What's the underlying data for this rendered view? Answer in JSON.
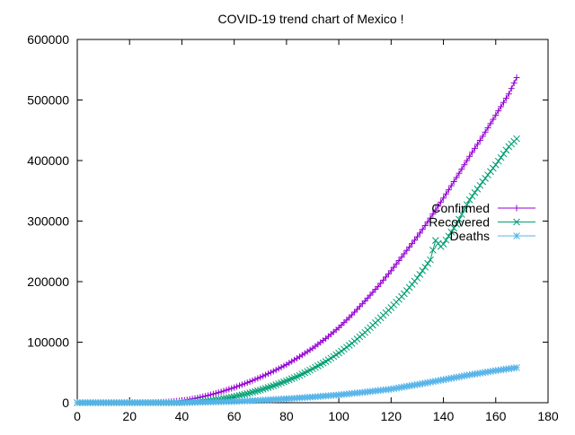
{
  "chart_data": {
    "type": "line",
    "title": "COVID-19 trend chart of Mexico !",
    "xlabel": "",
    "ylabel": "",
    "xlim": [
      0,
      180
    ],
    "ylim": [
      0,
      600000
    ],
    "x_ticks": [
      0,
      20,
      40,
      60,
      80,
      100,
      120,
      140,
      160,
      180
    ],
    "y_ticks": [
      0,
      100000,
      200000,
      300000,
      400000,
      500000,
      600000
    ],
    "x_tick_labels": [
      "0",
      "20",
      "40",
      "60",
      "80",
      "100",
      "120",
      "140",
      "160",
      "180"
    ],
    "y_tick_labels": [
      "0",
      "100000",
      "200000",
      "300000",
      "400000",
      "500000",
      "600000"
    ],
    "grid": false,
    "legend_placement": "right",
    "series": [
      {
        "name": "Confirmed",
        "color": "#9400d3",
        "marker": "plus",
        "points": [
          [
            0,
            0
          ],
          [
            10,
            0
          ],
          [
            20,
            0
          ],
          [
            30,
            500
          ],
          [
            35,
            1500
          ],
          [
            40,
            3500
          ],
          [
            45,
            7000
          ],
          [
            50,
            12000
          ],
          [
            55,
            18000
          ],
          [
            60,
            25000
          ],
          [
            65,
            33000
          ],
          [
            70,
            42000
          ],
          [
            75,
            52000
          ],
          [
            80,
            63000
          ],
          [
            85,
            76000
          ],
          [
            90,
            90000
          ],
          [
            95,
            106000
          ],
          [
            100,
            124000
          ],
          [
            105,
            145000
          ],
          [
            110,
            168000
          ],
          [
            115,
            192000
          ],
          [
            120,
            218000
          ],
          [
            125,
            246000
          ],
          [
            130,
            274000
          ],
          [
            135,
            305000
          ],
          [
            140,
            338000
          ],
          [
            145,
            372000
          ],
          [
            150,
            407000
          ],
          [
            155,
            440000
          ],
          [
            160,
            475000
          ],
          [
            165,
            510000
          ],
          [
            168,
            537000
          ]
        ]
      },
      {
        "name": "Recovered",
        "color": "#009e73",
        "marker": "cross",
        "points": [
          [
            0,
            0
          ],
          [
            20,
            0
          ],
          [
            40,
            0
          ],
          [
            45,
            1000
          ],
          [
            50,
            3000
          ],
          [
            55,
            6000
          ],
          [
            60,
            10000
          ],
          [
            65,
            15000
          ],
          [
            70,
            21000
          ],
          [
            75,
            28000
          ],
          [
            80,
            36000
          ],
          [
            85,
            45000
          ],
          [
            90,
            56000
          ],
          [
            95,
            68000
          ],
          [
            100,
            82000
          ],
          [
            105,
            98000
          ],
          [
            110,
            116000
          ],
          [
            115,
            136000
          ],
          [
            120,
            157000
          ],
          [
            125,
            180000
          ],
          [
            130,
            206000
          ],
          [
            135,
            236000
          ],
          [
            137,
            268000
          ],
          [
            139,
            258000
          ],
          [
            140,
            262000
          ],
          [
            145,
            295000
          ],
          [
            150,
            335000
          ],
          [
            155,
            365000
          ],
          [
            160,
            393000
          ],
          [
            165,
            423000
          ],
          [
            168,
            436000
          ]
        ]
      },
      {
        "name": "Deaths",
        "color": "#56b4e9",
        "marker": "star",
        "points": [
          [
            0,
            0
          ],
          [
            30,
            0
          ],
          [
            40,
            300
          ],
          [
            50,
            1000
          ],
          [
            60,
            2000
          ],
          [
            70,
            4000
          ],
          [
            80,
            6500
          ],
          [
            90,
            9500
          ],
          [
            100,
            13000
          ],
          [
            110,
            17500
          ],
          [
            120,
            22500
          ],
          [
            130,
            30000
          ],
          [
            140,
            38000
          ],
          [
            150,
            46000
          ],
          [
            160,
            53000
          ],
          [
            168,
            58000
          ]
        ]
      }
    ]
  }
}
